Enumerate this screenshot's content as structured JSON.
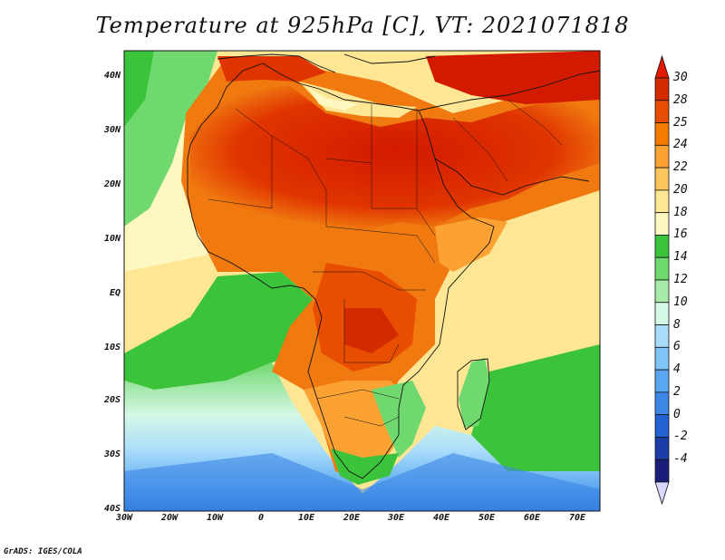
{
  "title": "Temperature at 925hPa [C], VT: 2021071818",
  "credit": "GrADS: IGES/COLA",
  "lat_labels": [
    "40N",
    "30N",
    "20N",
    "10N",
    "EQ",
    "10S",
    "20S",
    "30S",
    "40S"
  ],
  "lon_labels": [
    "30W",
    "20W",
    "10W",
    "0",
    "10E",
    "20E",
    "30E",
    "40E",
    "50E",
    "60E",
    "70E"
  ],
  "colorbar": {
    "labels": [
      "30",
      "28",
      "25",
      "24",
      "22",
      "20",
      "18",
      "16",
      "14",
      "12",
      "10",
      "8",
      "6",
      "4",
      "2",
      "0",
      "-2",
      "-4"
    ],
    "colors": [
      "#d42a00",
      "#e84d00",
      "#f67a00",
      "#fca233",
      "#fdc65c",
      "#fde694",
      "#fef7c0",
      "#3cc33c",
      "#6fd86f",
      "#a8eba8",
      "#d6f8e6",
      "#a8dcfa",
      "#7ec4f6",
      "#5aa6f0",
      "#3c86e6",
      "#2262d2",
      "#1b3ea8",
      "#1a1e7a"
    ]
  },
  "legend": {
    "max_color": "#e31a00",
    "min_color": "#d8d8ff"
  },
  "colors": {
    "ocean_cool": "#2a74d8",
    "ocean_mid": "#63c363",
    "land_hot": "#d61e00",
    "land_warm": "#f07a10",
    "land_mild": "#fde694",
    "coast": "#111111"
  }
}
